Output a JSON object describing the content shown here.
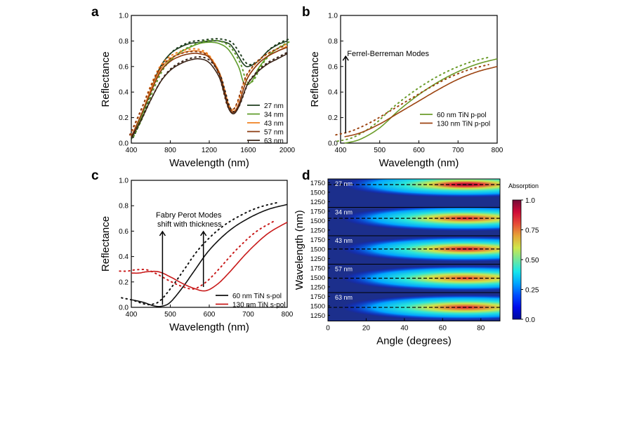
{
  "chart_data": [
    {
      "panel": "a",
      "type": "line",
      "xlabel": "Wavelength (nm)",
      "ylabel": "Reflectance",
      "xlim": [
        400,
        2000
      ],
      "ylim": [
        0,
        1.0
      ],
      "xticks": [
        400,
        800,
        1200,
        1600,
        2000
      ],
      "yticks": [
        0.0,
        0.2,
        0.4,
        0.6,
        0.8,
        1.0
      ],
      "legend_position": "bottom-right",
      "line_styles": [
        "solid measured",
        "dotted simulated"
      ],
      "series": [
        {
          "name": "27 nm",
          "color": "#1e3d1e",
          "x": [
            400,
            500,
            600,
            700,
            800,
            900,
            1000,
            1100,
            1200,
            1300,
            1400,
            1450,
            1500,
            1550,
            1600,
            1700,
            1800,
            1900,
            2000
          ],
          "values": [
            0.03,
            0.2,
            0.42,
            0.6,
            0.7,
            0.75,
            0.78,
            0.79,
            0.8,
            0.8,
            0.78,
            0.74,
            0.68,
            0.62,
            0.6,
            0.64,
            0.72,
            0.77,
            0.8
          ]
        },
        {
          "name": "34 nm",
          "color": "#5f9c2a",
          "x": [
            400,
            500,
            600,
            700,
            800,
            900,
            1000,
            1100,
            1200,
            1300,
            1400,
            1500,
            1550,
            1600,
            1650,
            1700,
            1800,
            1900,
            2000
          ],
          "values": [
            0.04,
            0.2,
            0.4,
            0.56,
            0.65,
            0.71,
            0.75,
            0.78,
            0.79,
            0.78,
            0.73,
            0.6,
            0.48,
            0.46,
            0.5,
            0.58,
            0.68,
            0.74,
            0.78
          ]
        },
        {
          "name": "43 nm",
          "color": "#f08020",
          "x": [
            400,
            500,
            600,
            700,
            800,
            900,
            1000,
            1100,
            1200,
            1300,
            1350,
            1400,
            1450,
            1500,
            1550,
            1600,
            1700,
            1800,
            1900,
            2000
          ],
          "values": [
            0.05,
            0.22,
            0.42,
            0.58,
            0.66,
            0.7,
            0.72,
            0.72,
            0.68,
            0.56,
            0.44,
            0.3,
            0.25,
            0.3,
            0.42,
            0.52,
            0.62,
            0.68,
            0.72,
            0.76
          ]
        },
        {
          "name": "57 nm",
          "color": "#8b3a10",
          "x": [
            400,
            500,
            600,
            700,
            800,
            900,
            1000,
            1100,
            1200,
            1300,
            1350,
            1400,
            1450,
            1500,
            1550,
            1600,
            1700,
            1800,
            1900,
            2000
          ],
          "values": [
            0.05,
            0.22,
            0.4,
            0.56,
            0.64,
            0.68,
            0.7,
            0.7,
            0.67,
            0.55,
            0.42,
            0.28,
            0.24,
            0.3,
            0.42,
            0.52,
            0.62,
            0.68,
            0.72,
            0.75
          ]
        },
        {
          "name": "63 nm",
          "color": "#3a2418",
          "x": [
            400,
            500,
            600,
            700,
            800,
            900,
            1000,
            1100,
            1200,
            1300,
            1350,
            1400,
            1450,
            1500,
            1550,
            1600,
            1700,
            1800,
            1900,
            2000
          ],
          "values": [
            0.04,
            0.18,
            0.34,
            0.48,
            0.57,
            0.62,
            0.65,
            0.66,
            0.63,
            0.52,
            0.4,
            0.27,
            0.23,
            0.28,
            0.38,
            0.47,
            0.56,
            0.62,
            0.66,
            0.7
          ]
        }
      ]
    },
    {
      "panel": "b",
      "type": "line",
      "xlabel": "Wavelength (nm)",
      "ylabel": "Reflectance",
      "xlim": [
        400,
        800
      ],
      "ylim": [
        0,
        1.0
      ],
      "xticks": [
        400,
        500,
        600,
        700,
        800
      ],
      "yticks": [
        0.0,
        0.2,
        0.4,
        0.6,
        0.8,
        1.0
      ],
      "legend_position": "bottom-right",
      "annotation": "Ferrel-Berreman Modes",
      "arrow_x": 413,
      "arrow_y_range": [
        0.08,
        0.68
      ],
      "series": [
        {
          "name": "60 nm TiN p-pol",
          "color": "#6b9c2a",
          "x": [
            410,
            450,
            500,
            550,
            600,
            650,
            700,
            750,
            800
          ],
          "values": [
            0.0,
            0.03,
            0.12,
            0.26,
            0.38,
            0.48,
            0.56,
            0.62,
            0.66
          ]
        },
        {
          "name": "130 nm TiN p-pol",
          "color": "#9c4310",
          "x": [
            410,
            450,
            500,
            550,
            600,
            650,
            700,
            750,
            800
          ],
          "values": [
            0.05,
            0.08,
            0.15,
            0.24,
            0.33,
            0.42,
            0.5,
            0.56,
            0.6
          ]
        }
      ]
    },
    {
      "panel": "c",
      "type": "line",
      "xlabel": "Wavelength (nm)",
      "ylabel": "Reflectance",
      "xlim": [
        400,
        800
      ],
      "ylim": [
        0,
        1.0
      ],
      "xticks": [
        400,
        500,
        600,
        700,
        800
      ],
      "yticks": [
        0.0,
        0.2,
        0.4,
        0.6,
        0.8,
        1.0
      ],
      "legend_position": "bottom-right",
      "annotation": "Fabry Perot Modes\nshift with thickness",
      "arrow_xs": [
        480,
        585
      ],
      "series": [
        {
          "name": "60 nm TiN s-pol",
          "color": "#111111",
          "x": [
            400,
            430,
            460,
            480,
            500,
            530,
            560,
            600,
            650,
            700,
            750,
            800
          ],
          "values": [
            0.06,
            0.04,
            0.01,
            0.01,
            0.04,
            0.15,
            0.28,
            0.45,
            0.6,
            0.7,
            0.77,
            0.81
          ]
        },
        {
          "name": "130 nm TiN s-pol",
          "color": "#c81a1a",
          "x": [
            400,
            420,
            440,
            470,
            500,
            530,
            560,
            590,
            620,
            650,
            700,
            750,
            800
          ],
          "values": [
            0.27,
            0.27,
            0.28,
            0.28,
            0.24,
            0.19,
            0.15,
            0.13,
            0.18,
            0.27,
            0.44,
            0.58,
            0.67
          ]
        }
      ]
    },
    {
      "panel": "d",
      "type": "heatmap",
      "xlabel": "Angle (degrees)",
      "ylabel": "Wavelength (nm)",
      "xlim": [
        0,
        90
      ],
      "xticks": [
        0,
        20,
        40,
        60,
        80
      ],
      "subplot_ylim": [
        1100,
        1850
      ],
      "subplot_yticks": [
        1250,
        1500,
        1750
      ],
      "colorbar_label": "Absorption",
      "colorbar_ticks": [
        0.0,
        0.25,
        0.5,
        0.75,
        1.0
      ],
      "colorbar_range": [
        0.0,
        1.0
      ],
      "subplots": [
        {
          "label": "27 nm",
          "dashed_line": 1700,
          "peak_angle": 72,
          "peak": 1.0
        },
        {
          "label": "34 nm",
          "dashed_line": 1560,
          "peak_angle": 72,
          "peak": 0.9
        },
        {
          "label": "43 nm",
          "dashed_line": 1500,
          "peak_angle": 72,
          "peak": 0.92
        },
        {
          "label": "57 nm",
          "dashed_line": 1480,
          "peak_angle": 72,
          "peak": 0.85
        },
        {
          "label": "63 nm",
          "dashed_line": 1460,
          "peak_angle": 72,
          "peak": 0.9
        }
      ]
    }
  ],
  "panel_labels": {
    "a": "a",
    "b": "b",
    "c": "c",
    "d": "d"
  },
  "legend_a": [
    "27 nm",
    "34 nm",
    "43 nm",
    "57 nm",
    "63 nm"
  ],
  "legend_b": [
    "60 nm TiN p-pol",
    "130 nm TiN p-pol"
  ],
  "legend_c": [
    "60 nm TiN s-pol",
    "130 nm TiN s-pol"
  ],
  "annot_b": "Ferrel-Berreman Modes",
  "annot_c_line1": "Fabry Perot Modes",
  "annot_c_line2": "shift with thickness",
  "colors": {
    "axis": "#000000",
    "background": "#ffffff",
    "heatmap_low": "#1c2f8c"
  }
}
